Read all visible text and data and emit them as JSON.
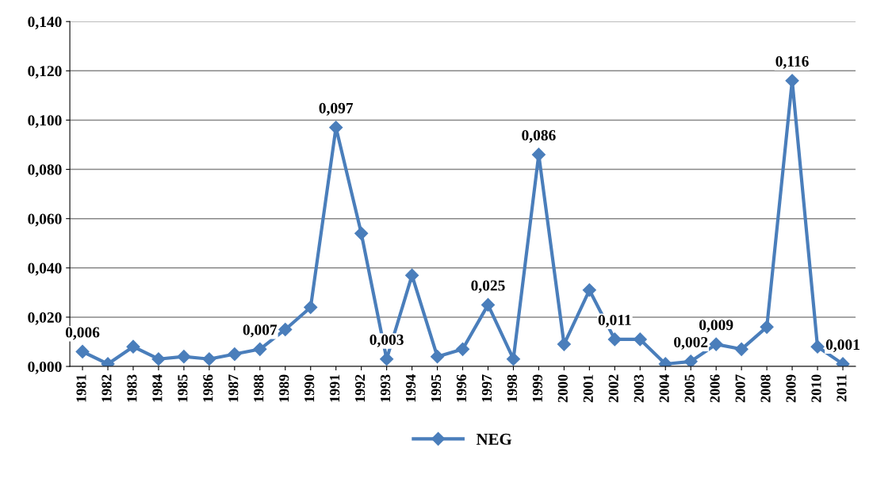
{
  "chart_data": {
    "type": "line",
    "categories": [
      "1981",
      "1982",
      "1983",
      "1984",
      "1985",
      "1986",
      "1987",
      "1988",
      "1989",
      "1990",
      "1991",
      "1992",
      "1993",
      "1994",
      "1995",
      "1996",
      "1997",
      "1998",
      "1999",
      "2000",
      "2001",
      "2002",
      "2003",
      "2004",
      "2005",
      "2006",
      "2007",
      "2008",
      "2009",
      "2010",
      "2011"
    ],
    "series": [
      {
        "name": "NEG",
        "color": "#4a7ebb",
        "values": [
          0.006,
          0.001,
          0.008,
          0.003,
          0.004,
          0.003,
          0.005,
          0.007,
          0.015,
          0.024,
          0.097,
          0.054,
          0.003,
          0.037,
          0.004,
          0.007,
          0.025,
          0.003,
          0.086,
          0.009,
          0.031,
          0.011,
          0.011,
          0.001,
          0.002,
          0.009,
          0.007,
          0.016,
          0.116,
          0.008,
          0.001
        ],
        "value_labels": [
          "0,006",
          null,
          null,
          null,
          null,
          null,
          null,
          "0,007",
          null,
          null,
          "0,097",
          null,
          "0,003",
          null,
          null,
          null,
          "0,025",
          null,
          "0,086",
          null,
          null,
          "0,011",
          null,
          null,
          "0,002",
          "0,009",
          null,
          null,
          "0,116",
          null,
          "0,001"
        ]
      }
    ],
    "ylim": [
      0,
      0.14
    ],
    "yticks": [
      {
        "value": 0,
        "label": "0,000"
      },
      {
        "value": 0.02,
        "label": "0,020"
      },
      {
        "value": 0.04,
        "label": "0,040"
      },
      {
        "value": 0.06,
        "label": "0,060"
      },
      {
        "value": 0.08,
        "label": "0,080"
      },
      {
        "value": 0.1,
        "label": "0,100"
      },
      {
        "value": 0.12,
        "label": "0,120"
      },
      {
        "value": 0.14,
        "label": "0,140"
      }
    ],
    "grid": "y",
    "legend": "bottom",
    "marker": "diamond",
    "line_style": "solid"
  }
}
